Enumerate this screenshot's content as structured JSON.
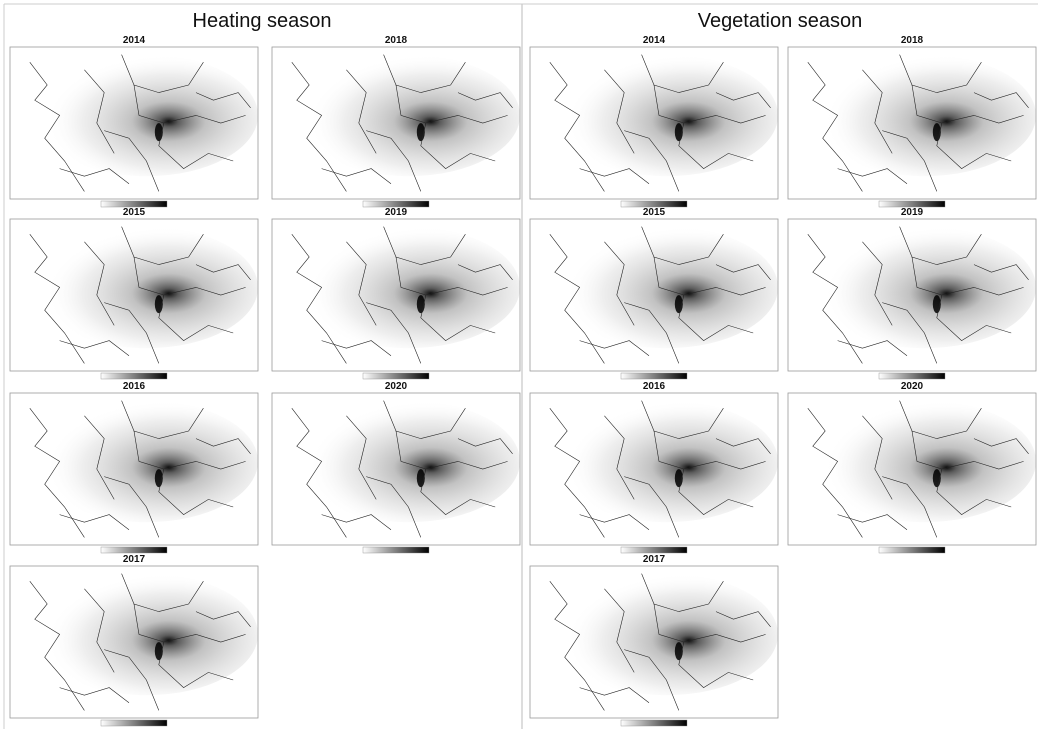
{
  "sections": [
    {
      "title": "Heating season",
      "panels": [
        {
          "year": "2014"
        },
        {
          "year": "2018"
        },
        {
          "year": "2015"
        },
        {
          "year": "2019"
        },
        {
          "year": "2016"
        },
        {
          "year": "2020"
        },
        {
          "year": "2017"
        }
      ]
    },
    {
      "title": "Vegetation season",
      "panels": [
        {
          "year": "2014"
        },
        {
          "year": "2018"
        },
        {
          "year": "2015"
        },
        {
          "year": "2019"
        },
        {
          "year": "2016"
        },
        {
          "year": "2020"
        },
        {
          "year": "2017"
        }
      ]
    }
  ]
}
